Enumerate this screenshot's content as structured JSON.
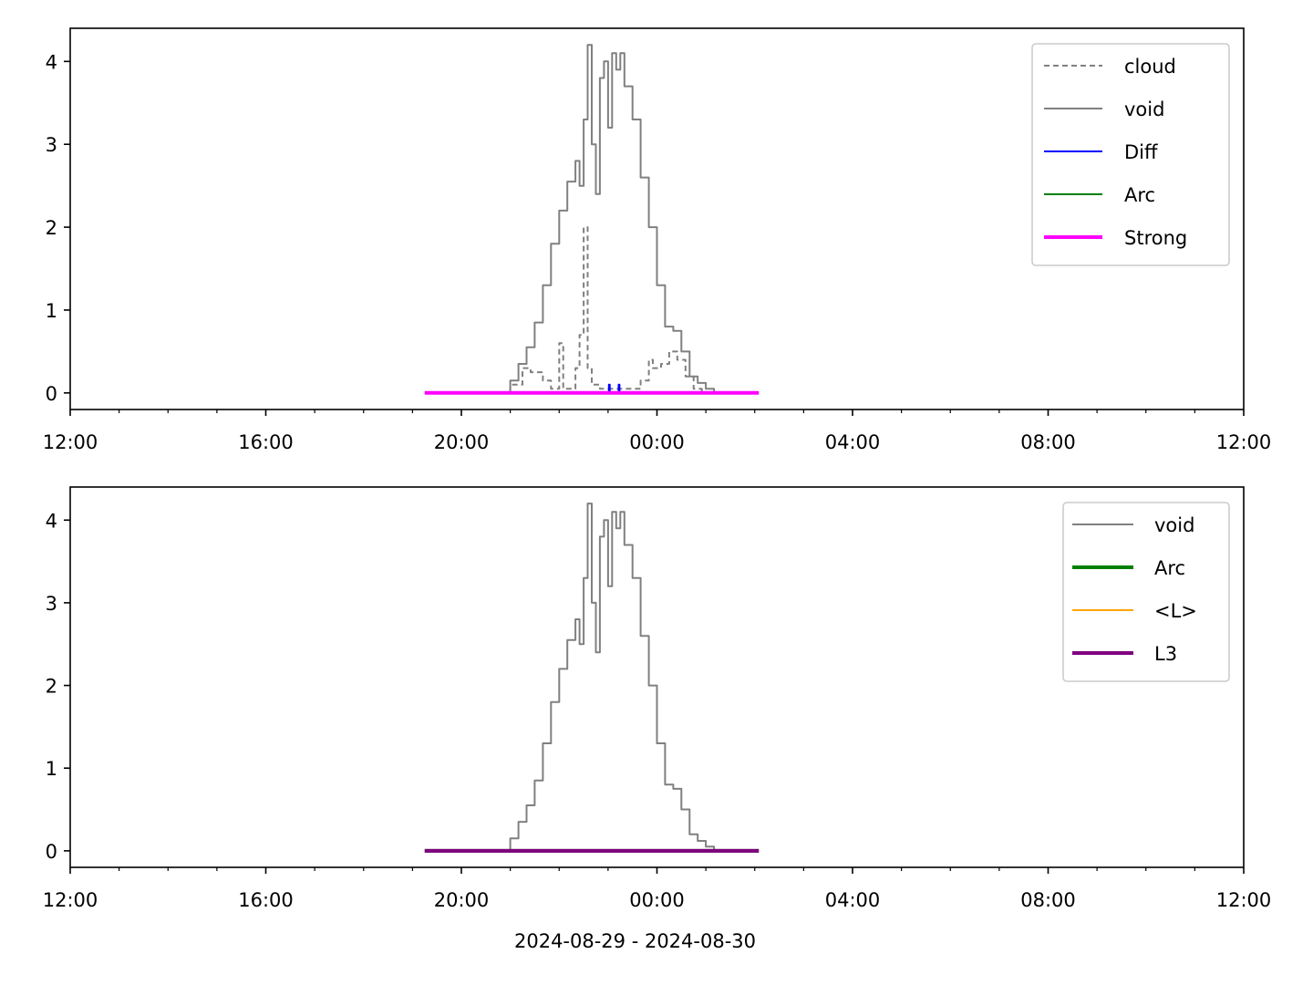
{
  "chart_data": [
    {
      "type": "line",
      "panel": "top",
      "title": "",
      "xlabel": "",
      "ylabel": "",
      "x_range": [
        "2024-08-29 12:00",
        "2024-08-30 12:00"
      ],
      "xticks": [
        "2024-08-29 12:00",
        "2024-08-29 16:00",
        "2024-08-29 20:00",
        "2024-08-30 00:00",
        "2024-08-30 04:00",
        "2024-08-30 08:00",
        "2024-08-30 12:00"
      ],
      "xtick_labels": [
        "12:00",
        "16:00",
        "20:00",
        "00:00",
        "04:00",
        "08:00",
        "12:00"
      ],
      "ylim": [
        -0.2,
        4.4
      ],
      "yticks": [
        0,
        1,
        2,
        3,
        4
      ],
      "ytick_labels": [
        "0",
        "1",
        "2",
        "3",
        "4"
      ],
      "grid": false,
      "legend_placement": "top-right",
      "series": [
        {
          "name": "cloud",
          "color": "#808080",
          "style": "dashed",
          "x": [
            "2024-08-29 20:50",
            "2024-08-29 21:00",
            "2024-08-29 21:15",
            "2024-08-29 21:25",
            "2024-08-29 21:40",
            "2024-08-29 21:50",
            "2024-08-29 22:00",
            "2024-08-29 22:05",
            "2024-08-29 22:10",
            "2024-08-29 22:15",
            "2024-08-29 22:20",
            "2024-08-29 22:25",
            "2024-08-29 22:30",
            "2024-08-29 22:35",
            "2024-08-29 22:40",
            "2024-08-29 22:45",
            "2024-08-29 22:50",
            "2024-08-29 23:30",
            "2024-08-29 23:40",
            "2024-08-29 23:50",
            "2024-08-29 23:55",
            "2024-08-30 00:05",
            "2024-08-30 00:15",
            "2024-08-30 00:25",
            "2024-08-30 00:35",
            "2024-08-30 00:45",
            "2024-08-30 00:55"
          ],
          "values": [
            0.0,
            0.1,
            0.3,
            0.25,
            0.15,
            0.05,
            0.6,
            0.05,
            0.05,
            0.05,
            0.3,
            0.7,
            2.0,
            0.3,
            0.1,
            0.1,
            0.05,
            0.05,
            0.15,
            0.4,
            0.3,
            0.35,
            0.5,
            0.4,
            0.2,
            0.05,
            0.0
          ]
        },
        {
          "name": "void",
          "color": "#808080",
          "style": "solid",
          "x": [
            "2024-08-29 20:50",
            "2024-08-29 21:00",
            "2024-08-29 21:10",
            "2024-08-29 21:20",
            "2024-08-29 21:30",
            "2024-08-29 21:40",
            "2024-08-29 21:50",
            "2024-08-29 22:00",
            "2024-08-29 22:10",
            "2024-08-29 22:20",
            "2024-08-29 22:25",
            "2024-08-29 22:30",
            "2024-08-29 22:35",
            "2024-08-29 22:40",
            "2024-08-29 22:45",
            "2024-08-29 22:50",
            "2024-08-29 22:55",
            "2024-08-29 23:00",
            "2024-08-29 23:05",
            "2024-08-29 23:10",
            "2024-08-29 23:15",
            "2024-08-29 23:20",
            "2024-08-29 23:30",
            "2024-08-29 23:40",
            "2024-08-29 23:50",
            "2024-08-30 00:00",
            "2024-08-30 00:10",
            "2024-08-30 00:20",
            "2024-08-30 00:30",
            "2024-08-30 00:40",
            "2024-08-30 00:50",
            "2024-08-30 01:00",
            "2024-08-30 01:10"
          ],
          "values": [
            0.0,
            0.15,
            0.35,
            0.55,
            0.85,
            1.3,
            1.8,
            2.2,
            2.55,
            2.8,
            2.5,
            3.3,
            4.2,
            3.0,
            2.4,
            3.8,
            4.0,
            3.2,
            4.1,
            3.9,
            4.1,
            3.7,
            3.3,
            2.6,
            2.0,
            1.3,
            0.8,
            0.75,
            0.5,
            0.2,
            0.12,
            0.05,
            0.0
          ]
        },
        {
          "name": "Diff",
          "color": "#0000ff",
          "style": "solid",
          "x": [
            "2024-08-29 23:00",
            "2024-08-29 23:01",
            "2024-08-29 23:02",
            "2024-08-29 23:12",
            "2024-08-29 23:13",
            "2024-08-29 23:14"
          ],
          "values": [
            0.0,
            0.1,
            0.0,
            0.0,
            0.1,
            0.0
          ]
        },
        {
          "name": "Arc",
          "color": "#008000",
          "style": "solid",
          "x": [
            "2024-08-29 19:15",
            "2024-08-30 02:05"
          ],
          "values": [
            0,
            0
          ]
        },
        {
          "name": "Strong",
          "color": "#ff00ff",
          "style": "solid-thick",
          "x": [
            "2024-08-29 19:15",
            "2024-08-30 02:05"
          ],
          "values": [
            0,
            0
          ]
        }
      ]
    },
    {
      "type": "line",
      "panel": "bottom",
      "title": "",
      "xlabel": "2024-08-29 - 2024-08-30",
      "ylabel": "",
      "x_range": [
        "2024-08-29 12:00",
        "2024-08-30 12:00"
      ],
      "xticks": [
        "2024-08-29 12:00",
        "2024-08-29 16:00",
        "2024-08-29 20:00",
        "2024-08-30 00:00",
        "2024-08-30 04:00",
        "2024-08-30 08:00",
        "2024-08-30 12:00"
      ],
      "xtick_labels": [
        "12:00",
        "16:00",
        "20:00",
        "00:00",
        "04:00",
        "08:00",
        "12:00"
      ],
      "ylim": [
        -0.2,
        4.4
      ],
      "yticks": [
        0,
        1,
        2,
        3,
        4
      ],
      "ytick_labels": [
        "0",
        "1",
        "2",
        "3",
        "4"
      ],
      "grid": false,
      "legend_placement": "top-right",
      "series": [
        {
          "name": "void",
          "color": "#808080",
          "style": "solid",
          "x": [
            "2024-08-29 20:50",
            "2024-08-29 21:00",
            "2024-08-29 21:10",
            "2024-08-29 21:20",
            "2024-08-29 21:30",
            "2024-08-29 21:40",
            "2024-08-29 21:50",
            "2024-08-29 22:00",
            "2024-08-29 22:10",
            "2024-08-29 22:20",
            "2024-08-29 22:25",
            "2024-08-29 22:30",
            "2024-08-29 22:35",
            "2024-08-29 22:40",
            "2024-08-29 22:45",
            "2024-08-29 22:50",
            "2024-08-29 22:55",
            "2024-08-29 23:00",
            "2024-08-29 23:05",
            "2024-08-29 23:10",
            "2024-08-29 23:15",
            "2024-08-29 23:20",
            "2024-08-29 23:30",
            "2024-08-29 23:40",
            "2024-08-29 23:50",
            "2024-08-30 00:00",
            "2024-08-30 00:10",
            "2024-08-30 00:20",
            "2024-08-30 00:30",
            "2024-08-30 00:40",
            "2024-08-30 00:50",
            "2024-08-30 01:00",
            "2024-08-30 01:10"
          ],
          "values": [
            0.0,
            0.15,
            0.35,
            0.55,
            0.85,
            1.3,
            1.8,
            2.2,
            2.55,
            2.8,
            2.5,
            3.3,
            4.2,
            3.0,
            2.4,
            3.8,
            4.0,
            3.2,
            4.1,
            3.9,
            4.1,
            3.7,
            3.3,
            2.6,
            2.0,
            1.3,
            0.8,
            0.75,
            0.5,
            0.2,
            0.12,
            0.05,
            0.0
          ]
        },
        {
          "name": "Arc",
          "color": "#008000",
          "style": "solid-thick",
          "x": [
            "2024-08-29 19:15",
            "2024-08-30 02:05"
          ],
          "values": [
            0,
            0
          ]
        },
        {
          "name": "<L>",
          "color": "#ffa500",
          "style": "solid",
          "x": [
            "2024-08-29 19:15",
            "2024-08-30 02:05"
          ],
          "values": [
            0,
            0
          ]
        },
        {
          "name": "L3",
          "color": "#800080",
          "style": "solid-thick",
          "x": [
            "2024-08-29 19:15",
            "2024-08-30 02:05"
          ],
          "values": [
            0,
            0
          ]
        }
      ]
    }
  ]
}
